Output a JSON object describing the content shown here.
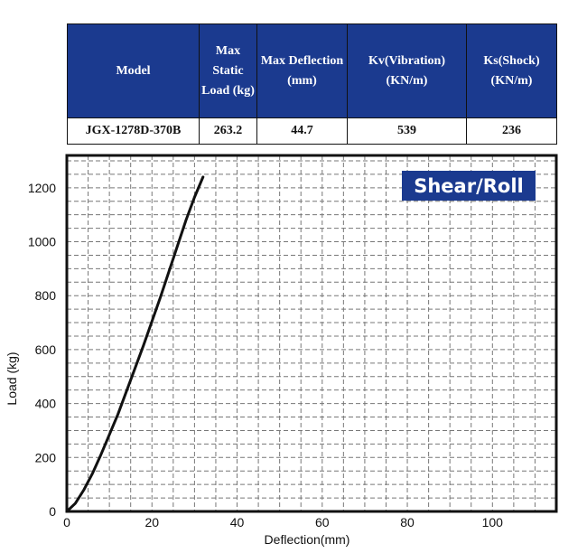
{
  "table": {
    "headers": [
      "Model",
      "Max Static Load (kg)",
      "Max Deflection (mm)",
      "Kv(Vibration) (KN/m)",
      "Ks(Shock) (KN/m)"
    ],
    "row": [
      "JGX-1278D-370B",
      "263.2",
      "44.7",
      "539",
      "236"
    ],
    "header_color": "#1b3a8f"
  },
  "chart_data": {
    "type": "line",
    "badge": "Shear/Roll",
    "badge_color": "#1b3a8f",
    "xlabel": "Deflection(mm)",
    "ylabel": "Load (kg)",
    "xlim": [
      0,
      115
    ],
    "ylim": [
      0,
      1320
    ],
    "x_ticks": [
      0,
      20,
      40,
      60,
      80,
      100
    ],
    "y_ticks": [
      0,
      200,
      400,
      600,
      800,
      1000,
      1200
    ],
    "grid": true,
    "series": [
      {
        "x": [
          0,
          2,
          4,
          6,
          8,
          10,
          12,
          14,
          16,
          18,
          20,
          22,
          24,
          26,
          28,
          30,
          32
        ],
        "y": [
          0,
          30,
          80,
          140,
          210,
          285,
          360,
          445,
          530,
          615,
          705,
          795,
          890,
          985,
          1080,
          1165,
          1240
        ]
      }
    ]
  }
}
